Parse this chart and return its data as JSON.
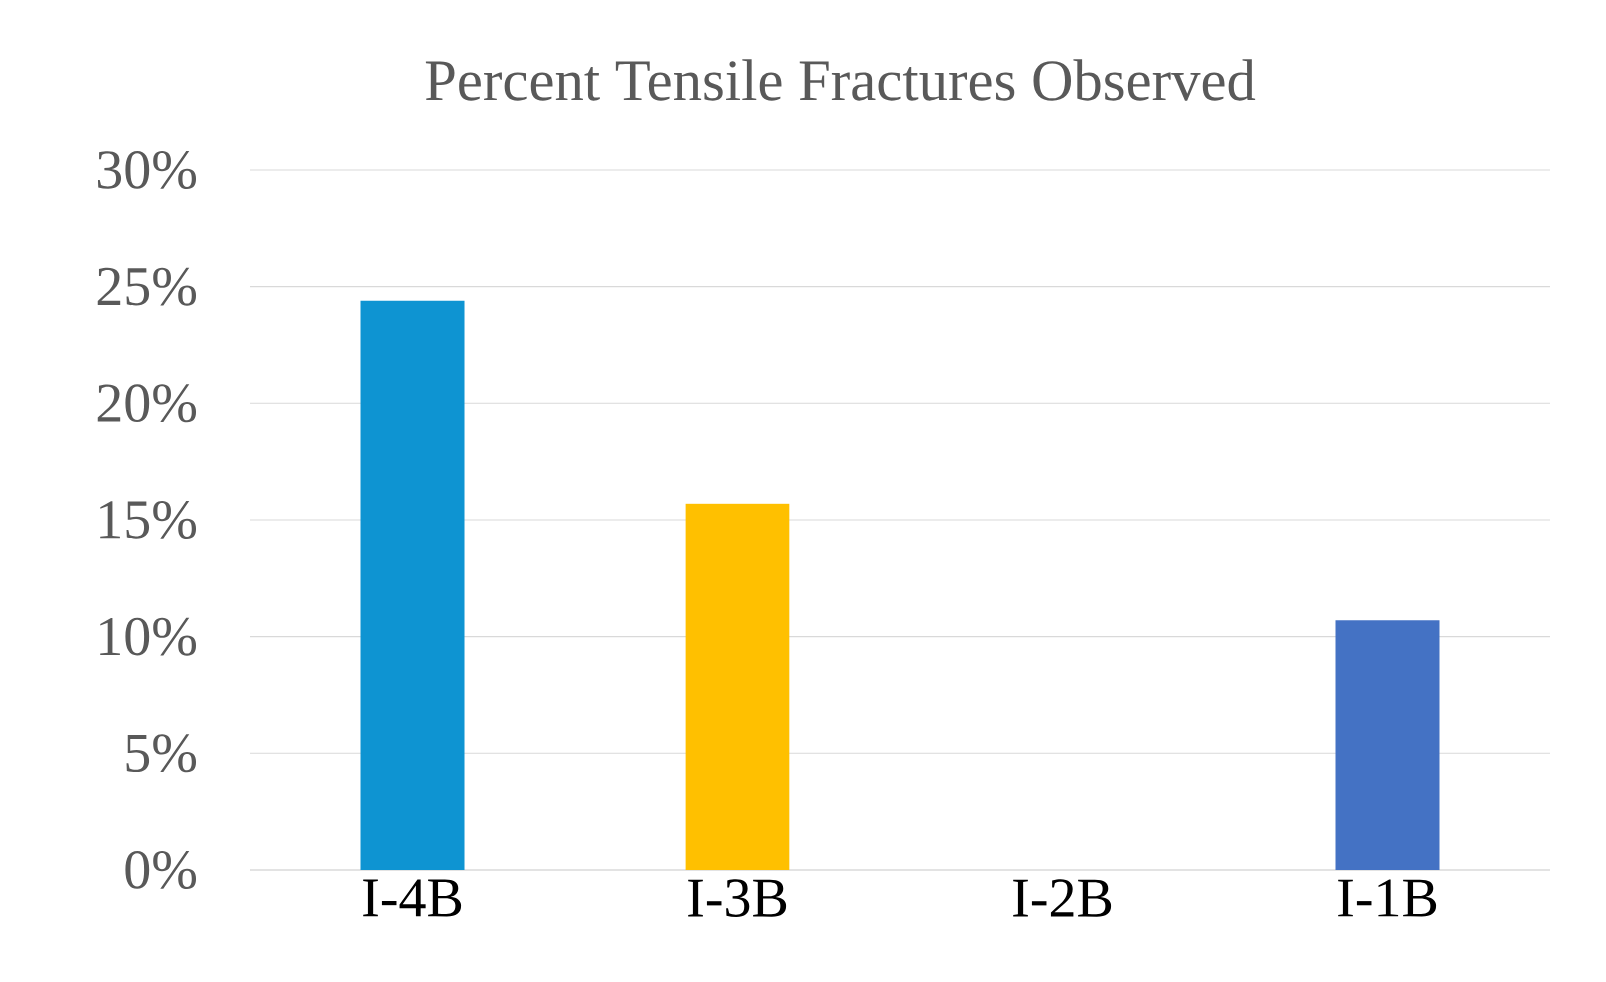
{
  "chart_data": {
    "type": "bar",
    "title": "Percent Tensile Fractures Observed",
    "categories": [
      "I-4B",
      "I-3B",
      "I-2B",
      "I-1B"
    ],
    "values": [
      24.4,
      15.7,
      0,
      10.7
    ],
    "colors": [
      "#0e94d2",
      "#ffc000",
      "#a5a5a5",
      "#4472c4"
    ],
    "ylim": [
      0,
      30
    ],
    "yticks": [
      {
        "value": 0,
        "label": "0%"
      },
      {
        "value": 5,
        "label": "5%"
      },
      {
        "value": 10,
        "label": "10%"
      },
      {
        "value": 15,
        "label": "15%"
      },
      {
        "value": 20,
        "label": "20%"
      },
      {
        "value": 25,
        "label": "25%"
      },
      {
        "value": 30,
        "label": "30%"
      }
    ],
    "grid": "y"
  }
}
